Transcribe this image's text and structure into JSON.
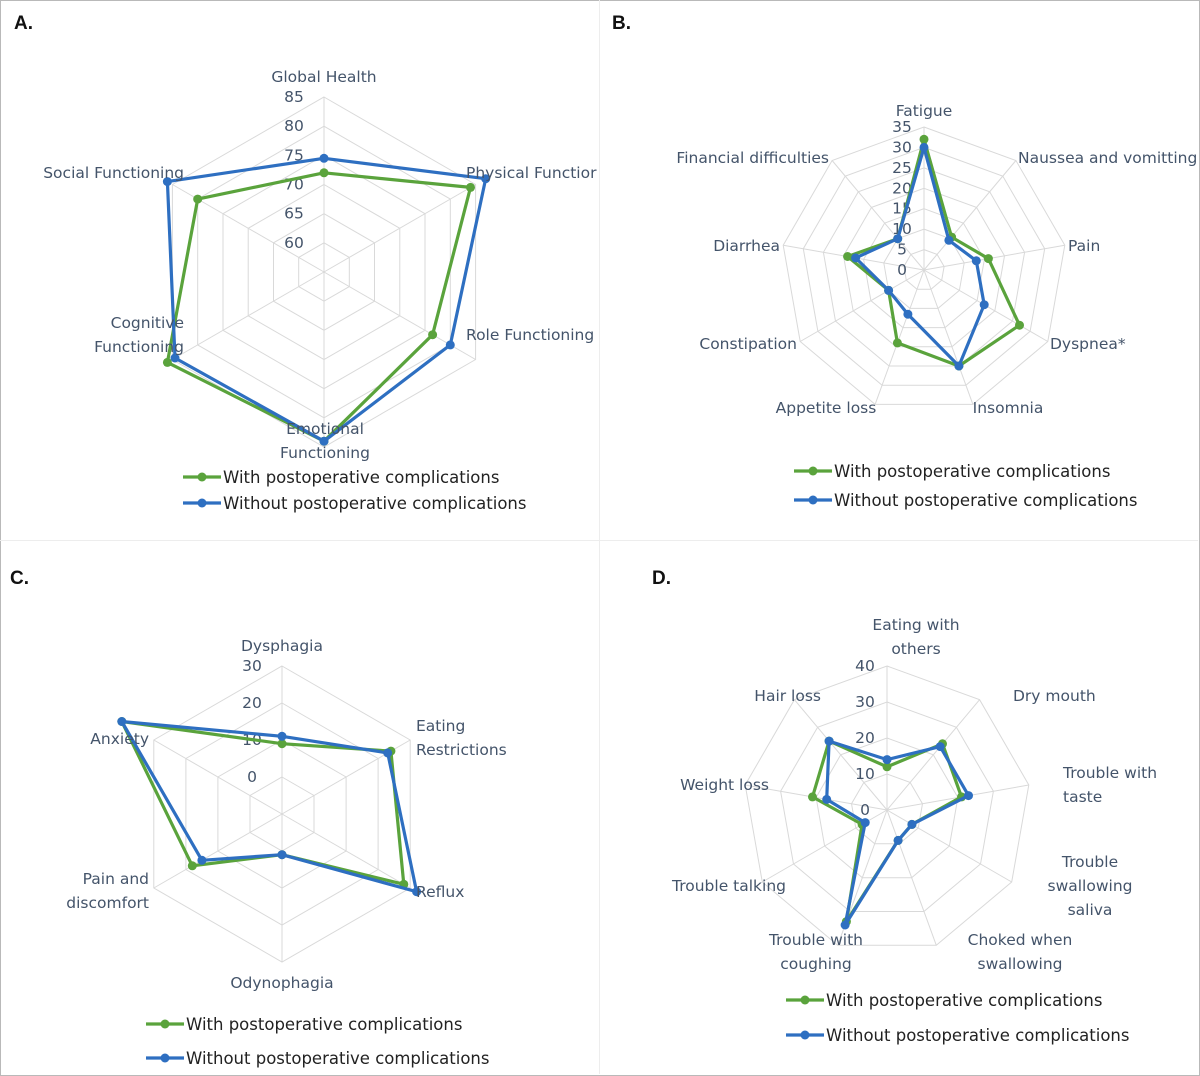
{
  "colors": {
    "with": "#5aa33c",
    "without": "#2e6fc1",
    "grid": "#d9d9d9",
    "text": "#44546a"
  },
  "legend": {
    "with_label": "With postoperative complications",
    "without_label": "Without postoperative complications"
  },
  "chart_data": [
    {
      "panel": "A.",
      "type": "radar",
      "axes": [
        [
          "Global Health"
        ],
        [
          "Physical Functior"
        ],
        [
          "Role Functioning"
        ],
        [
          "Emotional",
          "Functioning"
        ],
        [
          "Cognitive",
          "Functioning"
        ],
        [
          "Social Functioning"
        ]
      ],
      "rmin": 55,
      "rmax": 85,
      "ticks": [
        "60",
        "65",
        "70",
        "75",
        "80",
        "85"
      ],
      "tick_values": [
        60,
        65,
        70,
        75,
        80,
        85
      ],
      "series": [
        {
          "key": "with",
          "values": [
            72,
            84,
            76.5,
            84,
            86,
            80
          ]
        },
        {
          "key": "without",
          "values": [
            74.5,
            87,
            80,
            84,
            84.5,
            86
          ]
        }
      ]
    },
    {
      "panel": "B.",
      "type": "radar",
      "axes": [
        [
          "Fatigue"
        ],
        [
          "Naussea and vomitting"
        ],
        [
          "Pain"
        ],
        [
          "Dyspnea*"
        ],
        [
          "Insomnia"
        ],
        [
          "Appetite loss"
        ],
        [
          "Constipation"
        ],
        [
          "Diarrhea"
        ],
        [
          "Financial difficulties"
        ]
      ],
      "rmin": 0,
      "rmax": 35,
      "ticks": [
        "0",
        "5",
        "10",
        "15",
        "20",
        "25",
        "30",
        "35"
      ],
      "tick_values": [
        0,
        5,
        10,
        15,
        20,
        25,
        30,
        35
      ],
      "series": [
        {
          "key": "with",
          "values": [
            32,
            10.5,
            16,
            27,
            25,
            19,
            10,
            19,
            10
          ]
        },
        {
          "key": "without",
          "values": [
            30,
            9.5,
            13,
            17,
            25,
            11.5,
            10,
            17,
            10
          ]
        }
      ]
    },
    {
      "panel": "C.",
      "type": "radar",
      "axes": [
        [
          "Dysphagia"
        ],
        [
          "Eating",
          "Restrictions"
        ],
        [
          "Reflux"
        ],
        [
          "Odynophagia"
        ],
        [
          "Pain and",
          "discomfort"
        ],
        [
          "Anxiety"
        ]
      ],
      "rmin": -10,
      "rmax": 30,
      "ticks": [
        "0",
        "10",
        "20",
        "30"
      ],
      "tick_values": [
        0,
        10,
        20,
        30
      ],
      "series": [
        {
          "key": "with",
          "values": [
            9,
            24,
            28,
            1,
            18,
            40
          ]
        },
        {
          "key": "without",
          "values": [
            11,
            23,
            32,
            1,
            15,
            40
          ]
        }
      ]
    },
    {
      "panel": "D.",
      "type": "radar",
      "axes": [
        [
          "Eating with",
          "others"
        ],
        [
          "Dry mouth"
        ],
        [
          "Trouble with",
          "taste"
        ],
        [
          "Trouble",
          "swallowing",
          "saliva"
        ],
        [
          "Choked when",
          "swallowing"
        ],
        [
          "Trouble with",
          "coughing"
        ],
        [
          "Trouble talking"
        ],
        [
          "Weight loss"
        ],
        [
          "Hair loss"
        ]
      ],
      "rmin": 0,
      "rmax": 40,
      "ticks": [
        "0",
        "10",
        "20",
        "30",
        "40"
      ],
      "tick_values": [
        0,
        10,
        20,
        30,
        40
      ],
      "series": [
        {
          "key": "with",
          "values": [
            12,
            24,
            21,
            8,
            9,
            33,
            8,
            21,
            25
          ]
        },
        {
          "key": "without",
          "values": [
            14,
            23,
            23,
            8,
            9,
            34,
            7,
            17,
            25
          ]
        }
      ]
    }
  ]
}
